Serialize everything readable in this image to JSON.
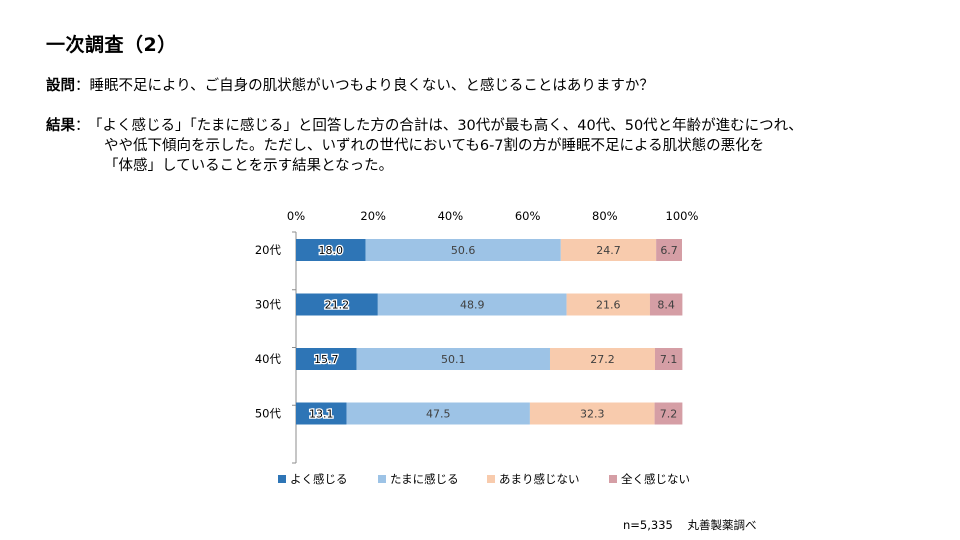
{
  "header": {
    "title": "一次調査（2）"
  },
  "question": {
    "label": "設問",
    "sep": "：",
    "text": "睡眠不足により、ご自身の肌状態がいつもより良くない、と感じることはありますか？"
  },
  "result": {
    "label": "結果",
    "sep": "：",
    "line1": "「よく感じる」「たまに感じる」と回答した方の合計は、30代が最も高く、40代、50代と年齢が進むにつれ、",
    "line2": "やや低下傾向を示した。ただし、いずれの世代においても6-7割の方が睡眠不足による肌状態の悪化を",
    "line3": "「体感」していることを示す結果となった。"
  },
  "footer": {
    "n": "n=5,335",
    "source": "丸善製薬調べ"
  },
  "chart_data": {
    "type": "bar",
    "orientation": "horizontal",
    "stacked": true,
    "categories": [
      "20代",
      "30代",
      "40代",
      "50代"
    ],
    "series": [
      {
        "name": "よく感じる",
        "values": [
          18.0,
          21.2,
          15.7,
          13.1
        ],
        "color": "#2e75b6"
      },
      {
        "name": "たまに感じる",
        "values": [
          50.6,
          48.9,
          50.1,
          47.5
        ],
        "color": "#9dc3e6"
      },
      {
        "name": "あまり感じない",
        "values": [
          24.7,
          21.6,
          27.2,
          32.3
        ],
        "color": "#f8cbad"
      },
      {
        "name": "全く感じない",
        "values": [
          6.7,
          8.4,
          7.1,
          7.2
        ],
        "color": "#d59ea5"
      }
    ],
    "xlim": [
      0,
      100
    ],
    "xticks": [
      "0%",
      "20%",
      "40%",
      "60%",
      "80%",
      "100%"
    ],
    "legend_position": "bottom",
    "grid": false
  }
}
